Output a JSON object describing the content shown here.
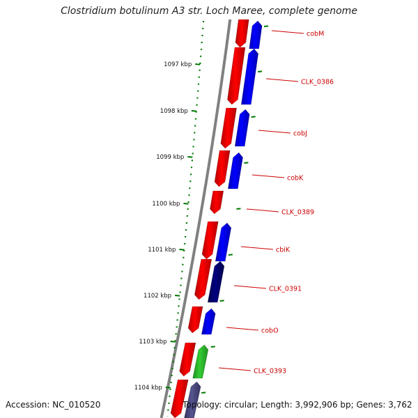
{
  "title": "Clostridium botulinum A3 str. Loch Maree, complete genome",
  "accession": "Accession: NC_010520",
  "topology": "Topology: circular; Length: 3,992,906 bp; Genes: 3,762",
  "colors": {
    "forward_strand": "#ff0000",
    "reverse_strand": "#0000ff",
    "reverse_dark": "#000080",
    "reverse_green": "#33cc33",
    "reverse_purple": "#55558f",
    "backbone": "#808080",
    "ticks": "#007700",
    "gene_labels": "#cc0000"
  },
  "ruler": [
    {
      "label": "1097 kbp"
    },
    {
      "label": "1098 kbp"
    },
    {
      "label": "1099 kbp"
    },
    {
      "label": "1100 kbp"
    },
    {
      "label": "1101 kbp"
    },
    {
      "label": "1102 kbp"
    },
    {
      "label": "1103 kbp"
    },
    {
      "label": "1104 kbp"
    }
  ],
  "gene_labels": [
    {
      "name": "cobM"
    },
    {
      "name": "CLK_0386"
    },
    {
      "name": "cobJ"
    },
    {
      "name": "cobK"
    },
    {
      "name": "CLK_0389"
    },
    {
      "name": "cbiK"
    },
    {
      "name": "CLK_0391"
    },
    {
      "name": "cobO"
    },
    {
      "name": "CLK_0393"
    }
  ]
}
